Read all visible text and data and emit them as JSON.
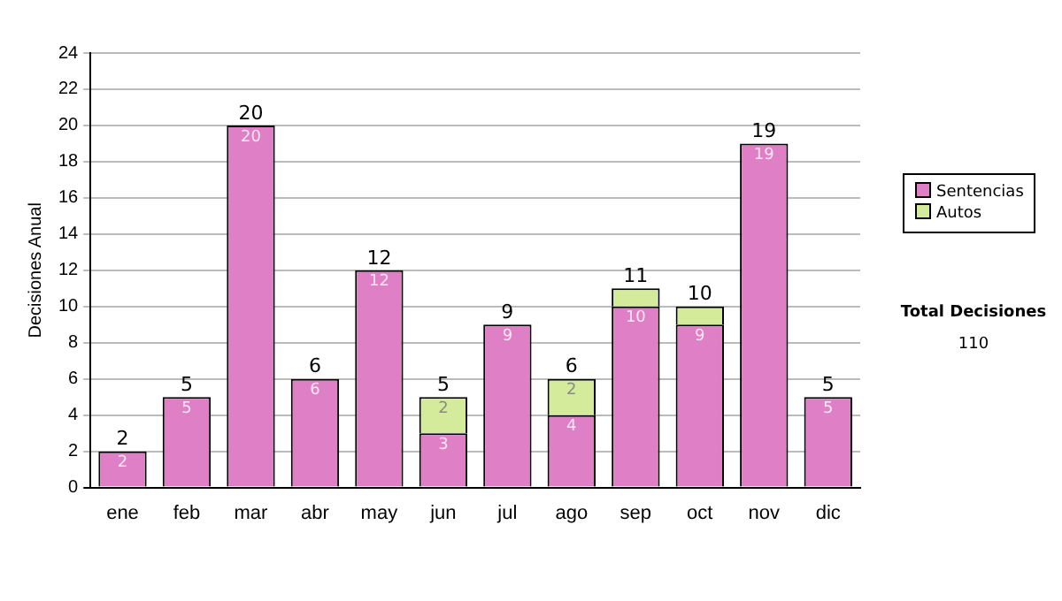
{
  "chart_data": {
    "type": "bar",
    "ylabel": "Decisiones Anual",
    "categories": [
      "ene",
      "feb",
      "mar",
      "abr",
      "may",
      "jun",
      "jul",
      "ago",
      "sep",
      "oct",
      "nov",
      "dic"
    ],
    "series": [
      {
        "name": "Sentencias",
        "color": "#df80c6",
        "values": [
          2,
          5,
          20,
          6,
          12,
          3,
          9,
          4,
          10,
          9,
          19,
          5
        ],
        "value_labels": [
          "2",
          "5",
          "20",
          "6",
          "12",
          "3",
          "9",
          "4",
          "10",
          "9",
          "19",
          "5"
        ]
      },
      {
        "name": "Autos",
        "color": "#d3eb9a",
        "values": [
          null,
          null,
          null,
          null,
          null,
          2,
          null,
          2,
          1,
          1,
          null,
          null
        ],
        "value_labels": [
          null,
          null,
          null,
          null,
          null,
          "2",
          null,
          "2",
          null,
          null,
          null,
          null
        ]
      }
    ],
    "stacked": true,
    "totals": [
      "2",
      "5",
      "20",
      "6",
      "12",
      "5",
      "9",
      "6",
      "11",
      "10",
      "19",
      "5"
    ],
    "ylim": [
      0,
      24
    ],
    "yticks": [
      0,
      2,
      4,
      6,
      8,
      10,
      12,
      14,
      16,
      18,
      20,
      22,
      24
    ],
    "grid": "y",
    "legend": "right",
    "annotations": [
      "Total Decisiones",
      "110"
    ]
  }
}
